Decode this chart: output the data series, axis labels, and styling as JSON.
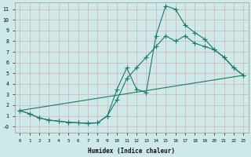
{
  "xlabel": "Humidex (Indice chaleur)",
  "bg_color": "#cde9e8",
  "grid_color": "#d8b8b8",
  "line_color": "#1a7a6e",
  "xlim": [
    -0.5,
    23.5
  ],
  "ylim": [
    -0.6,
    11.6
  ],
  "xticks": [
    0,
    1,
    2,
    3,
    4,
    5,
    6,
    7,
    8,
    9,
    10,
    11,
    12,
    13,
    14,
    15,
    16,
    17,
    18,
    19,
    20,
    21,
    22,
    23
  ],
  "yticks": [
    0,
    1,
    2,
    3,
    4,
    5,
    6,
    7,
    8,
    9,
    10,
    11
  ],
  "ytick_labels": [
    "-0",
    "1",
    "2",
    "3",
    "4",
    "5",
    "6",
    "7",
    "8",
    "9",
    "10",
    "11"
  ],
  "line1_x": [
    0,
    1,
    2,
    3,
    4,
    5,
    6,
    7,
    8,
    9,
    10,
    11,
    12,
    13,
    14,
    15,
    16,
    17,
    18,
    19,
    20,
    21,
    22,
    23
  ],
  "line1_y": [
    1.5,
    1.2,
    0.8,
    0.6,
    0.5,
    0.4,
    0.35,
    0.3,
    0.35,
    1.0,
    3.5,
    5.5,
    3.5,
    3.2,
    8.5,
    11.3,
    11.0,
    9.5,
    8.8,
    8.2,
    7.2,
    6.5,
    5.5,
    4.8
  ],
  "line2_x": [
    0,
    1,
    2,
    3,
    4,
    5,
    6,
    7,
    8,
    9,
    10,
    11,
    12,
    13,
    14,
    15,
    16,
    17,
    18,
    19,
    20,
    21,
    22,
    23
  ],
  "line2_y": [
    1.5,
    1.2,
    0.8,
    0.6,
    0.5,
    0.4,
    0.35,
    0.3,
    0.35,
    1.0,
    2.5,
    4.5,
    5.5,
    6.5,
    7.5,
    8.5,
    8.0,
    8.5,
    7.8,
    7.5,
    7.2,
    6.5,
    5.5,
    4.8
  ],
  "line3_x": [
    0,
    23
  ],
  "line3_y": [
    1.5,
    4.8
  ]
}
